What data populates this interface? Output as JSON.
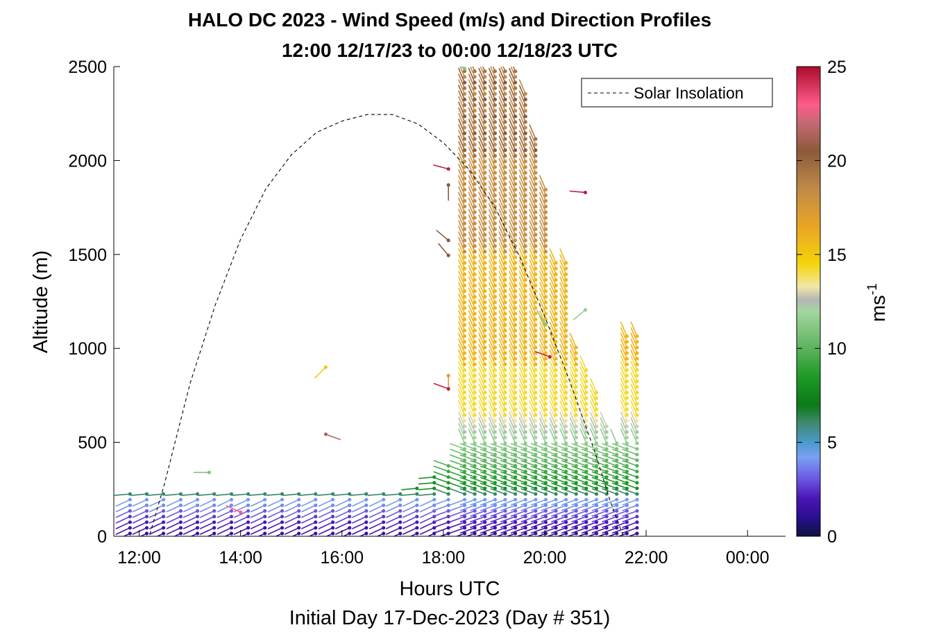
{
  "chart_data": {
    "type": "scatter",
    "title": "HALO DC 2023 - Wind Speed (m/s) and Direction Profiles",
    "subtitle": "12:00 12/17/23 to 00:00 12/18/23  UTC",
    "xlabel": "Hours UTC",
    "ylabel": "Altitude (m)",
    "footer": "Initial Day 17-Dec-2023 (Day # 351)",
    "xlim": [
      11.5,
      24.75
    ],
    "ylim": [
      0,
      2500
    ],
    "x_ticks": [
      {
        "value": 12,
        "label": "12:00"
      },
      {
        "value": 14,
        "label": "14:00"
      },
      {
        "value": 16,
        "label": "16:00"
      },
      {
        "value": 18,
        "label": "18:00"
      },
      {
        "value": 20,
        "label": "20:00"
      },
      {
        "value": 22,
        "label": "22:00"
      },
      {
        "value": 24,
        "label": "00:00"
      }
    ],
    "y_ticks": [
      {
        "value": 0,
        "label": "0"
      },
      {
        "value": 500,
        "label": "500"
      },
      {
        "value": 1000,
        "label": "1000"
      },
      {
        "value": 1500,
        "label": "1500"
      },
      {
        "value": 2000,
        "label": "2000"
      },
      {
        "value": 2500,
        "label": "2500"
      }
    ],
    "colorbar": {
      "label_main": "ms",
      "label_exp": "-1",
      "range": [
        0,
        25
      ],
      "ticks": [
        {
          "value": 0,
          "label": "0"
        },
        {
          "value": 5,
          "label": "5"
        },
        {
          "value": 10,
          "label": "10"
        },
        {
          "value": 15,
          "label": "15"
        },
        {
          "value": 20,
          "label": "20"
        },
        {
          "value": 25,
          "label": "25"
        }
      ],
      "stops": [
        {
          "v": 0,
          "color": "#0d1240"
        },
        {
          "v": 1,
          "color": "#2a0f8f"
        },
        {
          "v": 2,
          "color": "#4a14b4"
        },
        {
          "v": 3,
          "color": "#6a54e0"
        },
        {
          "v": 4.2,
          "color": "#7aa0f4"
        },
        {
          "v": 5,
          "color": "#4a9aca"
        },
        {
          "v": 6,
          "color": "#3f8a73"
        },
        {
          "v": 7,
          "color": "#0b7a17"
        },
        {
          "v": 8.5,
          "color": "#1d9a26"
        },
        {
          "v": 10,
          "color": "#5db35e"
        },
        {
          "v": 12,
          "color": "#a5d6a0"
        },
        {
          "v": 12.6,
          "color": "#b5b5b5"
        },
        {
          "v": 13.3,
          "color": "#f2e7a6"
        },
        {
          "v": 14.5,
          "color": "#f4d40a"
        },
        {
          "v": 16.5,
          "color": "#eaa424"
        },
        {
          "v": 18.5,
          "color": "#c08a48"
        },
        {
          "v": 20.5,
          "color": "#8c5a3a"
        },
        {
          "v": 22,
          "color": "#c46a72"
        },
        {
          "v": 23,
          "color": "#ff5a8a"
        },
        {
          "v": 25,
          "color": "#aa0c2a"
        }
      ]
    },
    "legend": {
      "position": "top-right",
      "entries": [
        {
          "label": "Solar Insolation",
          "style": "dashed",
          "color": "#000000"
        }
      ]
    },
    "solar_insolation_curve": [
      {
        "x": 11.5,
        "y": 0
      },
      {
        "x": 12.2,
        "y": 0
      },
      {
        "x": 12.5,
        "y": 280
      },
      {
        "x": 13.0,
        "y": 810
      },
      {
        "x": 13.5,
        "y": 1230
      },
      {
        "x": 14.0,
        "y": 1580
      },
      {
        "x": 14.5,
        "y": 1850
      },
      {
        "x": 15.0,
        "y": 2030
      },
      {
        "x": 15.5,
        "y": 2150
      },
      {
        "x": 16.0,
        "y": 2210
      },
      {
        "x": 16.5,
        "y": 2245
      },
      {
        "x": 17.0,
        "y": 2245
      },
      {
        "x": 17.5,
        "y": 2195
      },
      {
        "x": 18.0,
        "y": 2095
      },
      {
        "x": 18.5,
        "y": 1955
      },
      {
        "x": 19.0,
        "y": 1760
      },
      {
        "x": 19.5,
        "y": 1490
      },
      {
        "x": 20.0,
        "y": 1170
      },
      {
        "x": 20.5,
        "y": 820
      },
      {
        "x": 21.0,
        "y": 440
      },
      {
        "x": 21.3,
        "y": 180
      },
      {
        "x": 21.55,
        "y": 0
      },
      {
        "x": 24.75,
        "y": 0
      }
    ],
    "time_columns": [
      11.82,
      12.15,
      12.48,
      12.82,
      13.15,
      13.48,
      13.82,
      14.15,
      14.48,
      14.82,
      15.15,
      15.48,
      15.82,
      16.15,
      16.48,
      16.82,
      17.15,
      17.48,
      17.82,
      18.1,
      18.42,
      18.62,
      18.82,
      19.02,
      19.22,
      19.42,
      19.62,
      19.82,
      20.02,
      20.22,
      20.42,
      20.62,
      20.82,
      21.02,
      21.22,
      21.42,
      21.62,
      21.82
    ],
    "profile_top_altitude_m": [
      240,
      240,
      240,
      245,
      245,
      245,
      245,
      245,
      245,
      245,
      245,
      245,
      245,
      245,
      245,
      250,
      250,
      280,
      330,
      380,
      2500,
      2500,
      2500,
      2500,
      2500,
      2500,
      2360,
      2140,
      1860,
      1460,
      1460,
      1010,
      910,
      770,
      610,
      520,
      1090,
      1090
    ],
    "vector_length_hours": 0.31,
    "wind_vectors_sparse": [
      {
        "t": 13.38,
        "alt": 340,
        "speed": 11,
        "dir": 270
      },
      {
        "t": 14.0,
        "alt": 128,
        "speed": 23,
        "dir": 295
      },
      {
        "t": 15.68,
        "alt": 900,
        "speed": 15,
        "dir": 225
      },
      {
        "t": 15.68,
        "alt": 543,
        "speed": 21.5,
        "dir": 110
      },
      {
        "t": 18.1,
        "alt": 1955,
        "speed": 24.5,
        "dir": 285
      },
      {
        "t": 18.1,
        "alt": 1870,
        "speed": 20.5,
        "dir": 180
      },
      {
        "t": 18.1,
        "alt": 1575,
        "speed": 20.5,
        "dir": 310
      },
      {
        "t": 18.1,
        "alt": 1495,
        "speed": 20.5,
        "dir": 320
      },
      {
        "t": 18.1,
        "alt": 855,
        "speed": 17,
        "dir": 180
      },
      {
        "t": 18.1,
        "alt": 785,
        "speed": 24.5,
        "dir": 290
      },
      {
        "t": 18.42,
        "alt": 2490,
        "speed": 11,
        "dir": 300
      },
      {
        "t": 20.1,
        "alt": 955,
        "speed": 24.5,
        "dir": 290
      },
      {
        "t": 20.0,
        "alt": 1130,
        "speed": 11,
        "dir": 330
      },
      {
        "t": 20.8,
        "alt": 1830,
        "speed": 24.5,
        "dir": 275
      },
      {
        "t": 20.8,
        "alt": 1205,
        "speed": 11.5,
        "dir": 230
      }
    ]
  }
}
